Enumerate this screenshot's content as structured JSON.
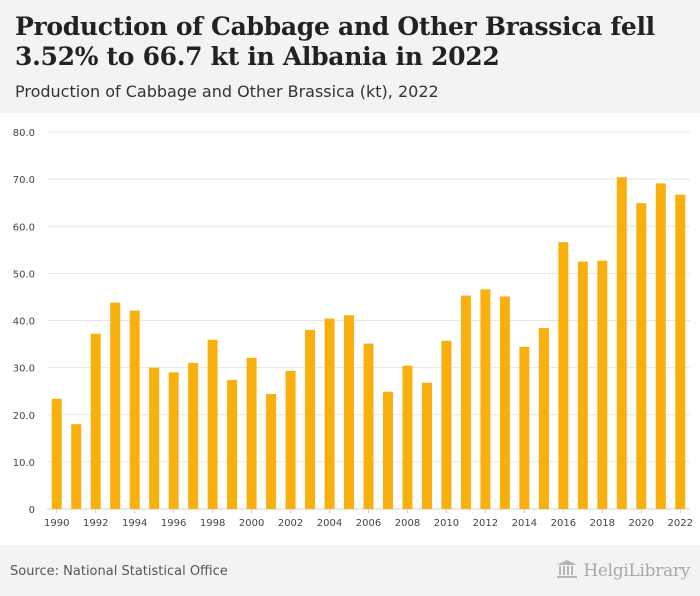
{
  "header": {
    "title": "Production of Cabbage and Other Brassica fell 3.52% to 66.7 kt in Albania in 2022",
    "subtitle": "Production of Cabbage and Other Brassica (kt), 2022"
  },
  "footer": {
    "source": "Source: National Statistical Office",
    "brand": "HelgiLibrary",
    "brand_icon": "library-building-icon"
  },
  "colors": {
    "bar": "#f9b00f",
    "grid": "#e6e6e6",
    "axis_text": "#444444",
    "background_band": "#f3f3f3"
  },
  "chart_data": {
    "type": "bar",
    "title": "Production of Cabbage and Other Brassica (kt), 2022",
    "xlabel": "",
    "ylabel": "",
    "ylim": [
      0,
      80
    ],
    "yticks": [
      0,
      10,
      20,
      30,
      40,
      50,
      60,
      70,
      80
    ],
    "ytick_labels": [
      "0",
      "10.0",
      "20.0",
      "30.0",
      "40.0",
      "50.0",
      "60.0",
      "70.0",
      "80.0"
    ],
    "grid": true,
    "categories": [
      "1990",
      "1991",
      "1992",
      "1993",
      "1994",
      "1995",
      "1996",
      "1997",
      "1998",
      "1999",
      "2000",
      "2001",
      "2002",
      "2003",
      "2004",
      "2005",
      "2006",
      "2007",
      "2008",
      "2009",
      "2010",
      "2011",
      "2012",
      "2013",
      "2014",
      "2015",
      "2016",
      "2017",
      "2018",
      "2019",
      "2020",
      "2021",
      "2022"
    ],
    "xtick_labels": [
      "1990",
      "1992",
      "1994",
      "1996",
      "1998",
      "2000",
      "2002",
      "2004",
      "2006",
      "2008",
      "2010",
      "2012",
      "2014",
      "2016",
      "2018",
      "2020",
      "2022"
    ],
    "values": [
      23.4,
      18.0,
      37.2,
      43.8,
      42.1,
      30.0,
      29.0,
      31.0,
      35.9,
      27.4,
      32.1,
      24.4,
      29.3,
      38.0,
      40.4,
      41.1,
      35.1,
      24.9,
      30.4,
      26.8,
      35.7,
      45.3,
      46.6,
      45.1,
      34.4,
      38.4,
      56.6,
      52.5,
      52.7,
      70.4,
      64.9,
      69.1,
      66.7
    ]
  }
}
